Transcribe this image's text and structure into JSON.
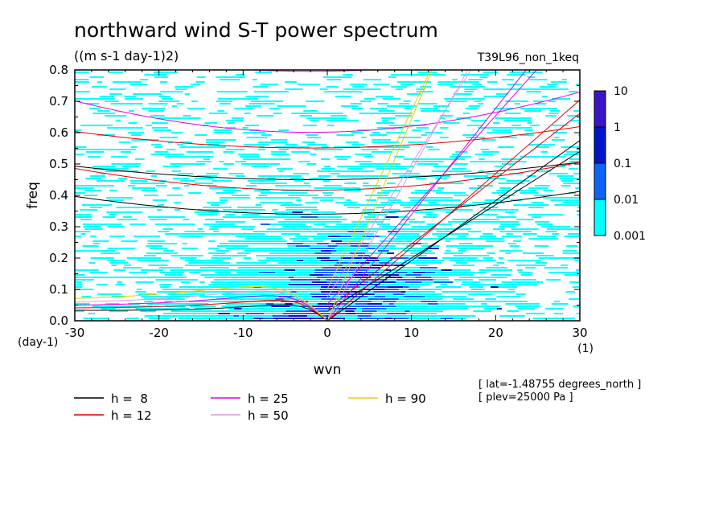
{
  "chart_data": {
    "type": "heatmap",
    "title": "northward wind S-T power spectrum",
    "subtitle": "((m s-1 day-1)2)",
    "dataset_label": "T39L96_non_1keq",
    "xlabel": "wvn",
    "ylabel": "freq",
    "x_unit": "(1)",
    "y_unit": "(day-1)",
    "xlim": [
      -30,
      30
    ],
    "ylim": [
      0,
      0.8
    ],
    "x_ticks": [
      -30,
      -20,
      -10,
      0,
      10,
      20,
      30
    ],
    "x_tick_labels": [
      "-30",
      "-20",
      "-10",
      "0",
      "10",
      "20",
      "30"
    ],
    "y_ticks": [
      0,
      0.1,
      0.2,
      0.3,
      0.4,
      0.5,
      0.6,
      0.7,
      0.8
    ],
    "y_tick_labels": [
      "0.0",
      "0.1",
      "0.2",
      "0.3",
      "0.4",
      "0.5",
      "0.6",
      "0.7",
      "0.8"
    ],
    "color_scale": {
      "levels": [
        0.001,
        0.01,
        0.1,
        1,
        10
      ],
      "level_labels": [
        "0.001",
        "0.01",
        "0.1",
        "1",
        "10"
      ],
      "colors": [
        "#00ffff",
        "#0c64ff",
        "#0014c8",
        "#3c14c8"
      ]
    },
    "dispersion_curves": [
      {
        "label": "h =  8",
        "color": "#000000"
      },
      {
        "label": "h = 12",
        "color": "#e00000"
      },
      {
        "label": "h = 25",
        "color": "#e000e0"
      },
      {
        "label": "h = 50",
        "color": "#d89ae8"
      },
      {
        "label": "h = 90",
        "color": "#e8d000"
      }
    ],
    "annotations": [
      "[ lat=-1.48755 degrees_north ]",
      "[ plev=25000 Pa ]"
    ]
  }
}
